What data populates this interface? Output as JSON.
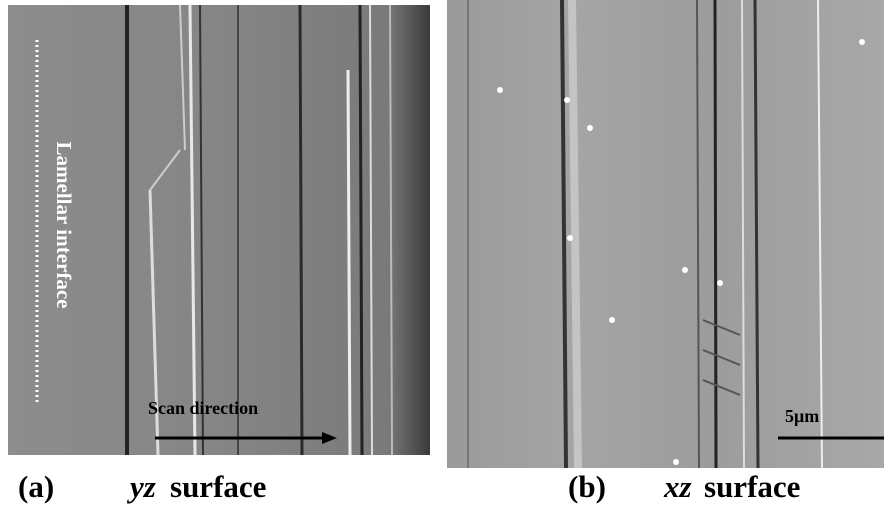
{
  "panels": [
    {
      "label": "(a)",
      "caption_italic": "yz",
      "caption": "surface",
      "vertical_label": "Lamellar interface",
      "arrow_label": "Scan direction"
    },
    {
      "label": "(b)",
      "caption_italic": "xz",
      "caption": "surface",
      "scale_bar": "5μm"
    }
  ]
}
